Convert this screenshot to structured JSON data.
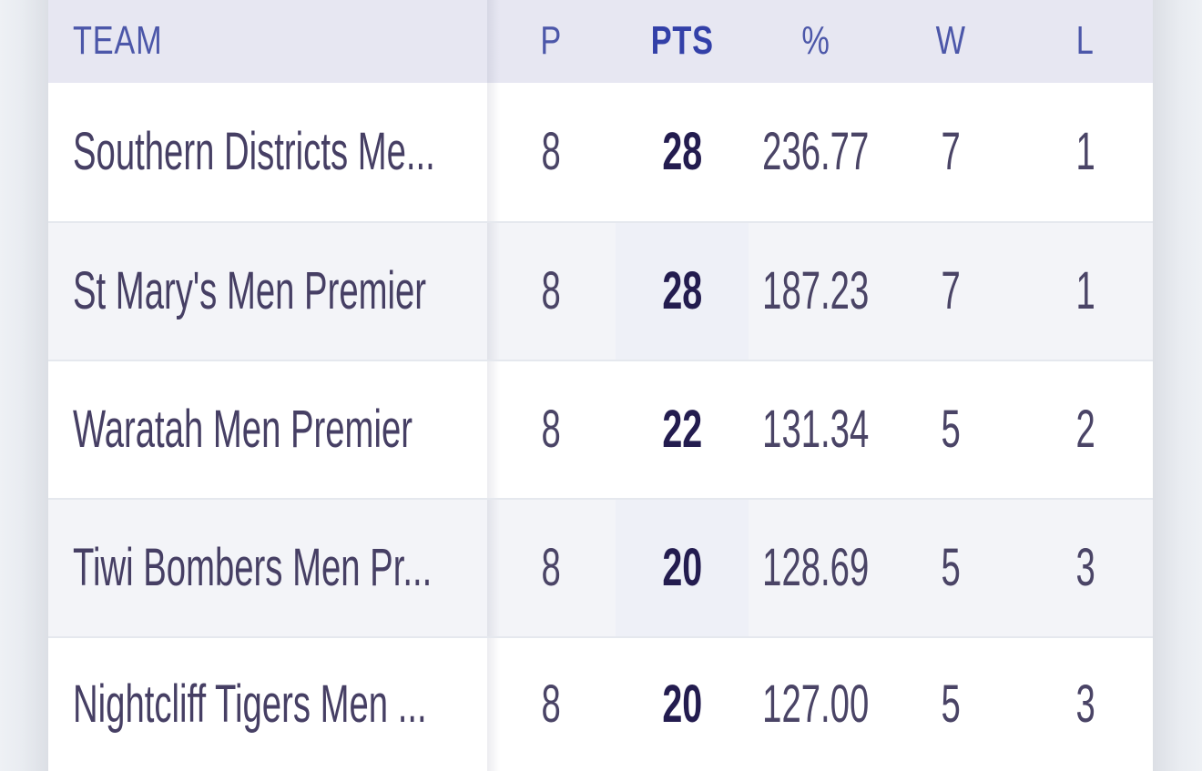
{
  "app": {
    "view": "league-ladder-table"
  },
  "colors": {
    "page_bg": "#eef1f5",
    "edge_shadow": "#dcdfe5",
    "header_bg": "#e7e7f2",
    "header_text": "#4c57a9",
    "header_sorted_text": "#3340a8",
    "row_bg": "#ffffff",
    "row_alt_bg": "#f3f4f8",
    "sorted_cell_alt_bg": "#eef0f7",
    "divider": "#e5e8ee",
    "team_text": "#463f64",
    "stat_text": "#4a4466",
    "points_text": "#231c4f"
  },
  "table": {
    "sorted_column": "PTS",
    "columns": [
      {
        "id": "team",
        "label": "TEAM",
        "sorted": false
      },
      {
        "id": "p",
        "label": "P",
        "sorted": false
      },
      {
        "id": "pts",
        "label": "PTS",
        "sorted": true
      },
      {
        "id": "pct",
        "label": "%",
        "sorted": false
      },
      {
        "id": "w",
        "label": "W",
        "sorted": false
      },
      {
        "id": "l",
        "label": "L",
        "sorted": false
      }
    ],
    "rows": [
      {
        "team": "Southern Districts Me...",
        "p": "8",
        "pts": "28",
        "pct": "236.77",
        "w": "7",
        "l": "1"
      },
      {
        "team": "St Mary's Men Premier",
        "p": "8",
        "pts": "28",
        "pct": "187.23",
        "w": "7",
        "l": "1"
      },
      {
        "team": "Waratah Men Premier",
        "p": "8",
        "pts": "22",
        "pct": "131.34",
        "w": "5",
        "l": "2"
      },
      {
        "team": "Tiwi Bombers Men Pr...",
        "p": "8",
        "pts": "20",
        "pct": "128.69",
        "w": "5",
        "l": "3"
      },
      {
        "team": "Nightcliff Tigers Men ...",
        "p": "8",
        "pts": "20",
        "pct": "127.00",
        "w": "5",
        "l": "3"
      }
    ]
  }
}
